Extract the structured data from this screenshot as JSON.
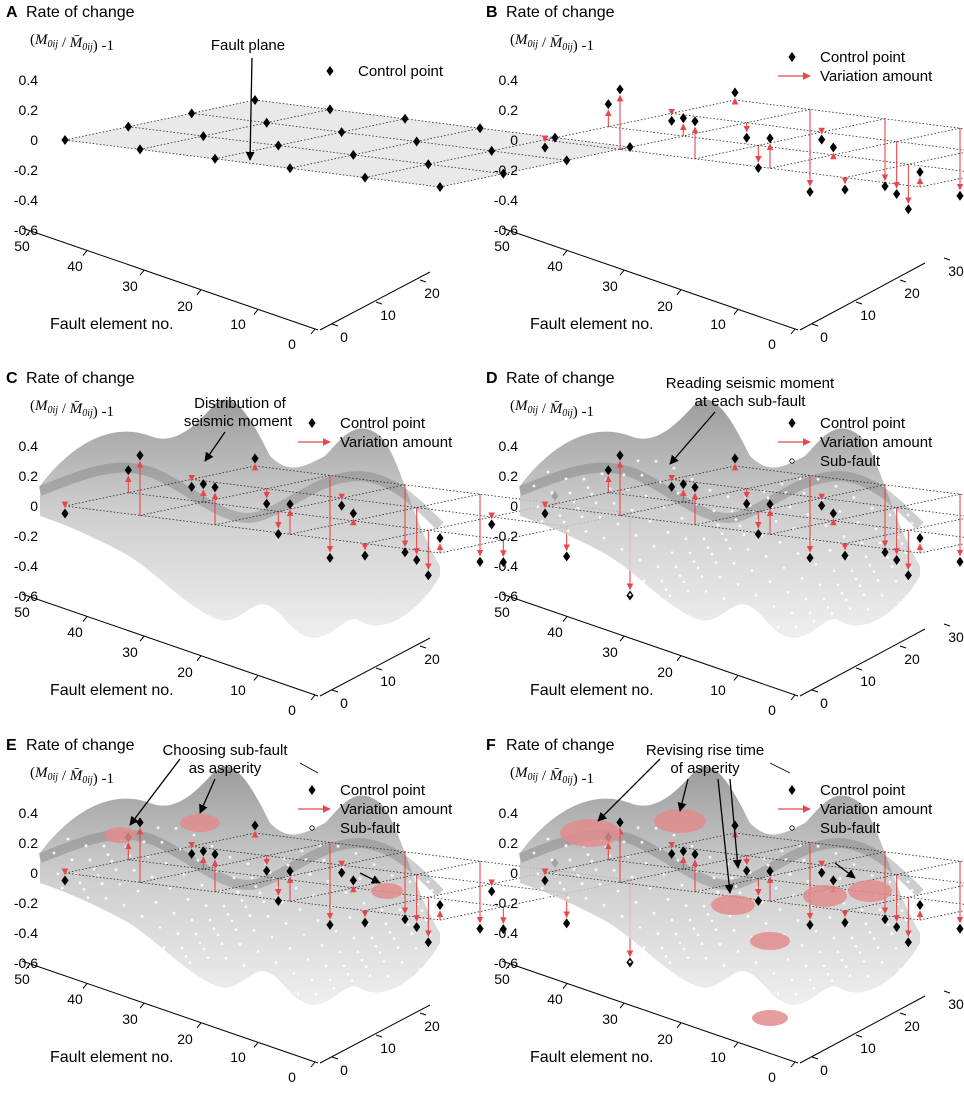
{
  "colors": {
    "variation": "#e8474a",
    "grid": "#222222",
    "plane": "#e9e9e9",
    "asperity": "#e28c8c",
    "surface_dark": "#7a7a7a",
    "surface_light": "#dedede"
  },
  "chart_data": [
    {
      "type": "surface3d",
      "panel_label": "A",
      "ylabel_line1": "Rate of change",
      "ylabel_formula": "(M0ij / M̄0ij) -1",
      "formula": {
        "open": "(",
        "M": "M",
        "sub": "0ij",
        "slash": " / ",
        "Mbar": "M̄",
        "close": ") -1"
      },
      "ytick_labels": [
        "0.4",
        "0.2",
        "0",
        "-0.2",
        "-0.4",
        "-0.6"
      ],
      "yticks": [
        0.4,
        0.2,
        0,
        -0.2,
        -0.4,
        -0.6
      ],
      "ylim": [
        -0.6,
        0.4
      ],
      "x_tick_labels": [
        "50",
        "40",
        "30",
        "20",
        "10",
        "0"
      ],
      "x_ticks": [
        50,
        40,
        30,
        20,
        10,
        0
      ],
      "xlabel": "Fault element no.",
      "z_tick_labels": [
        "0",
        "10",
        "20"
      ],
      "z_ticks": [
        0,
        10,
        20
      ],
      "legend": [
        {
          "name": "Control point",
          "marker": "diamond"
        }
      ],
      "annotations": [
        {
          "text": "Fault plane"
        }
      ],
      "control_points": [
        {
          "x": 0,
          "y": 0,
          "value": 0
        },
        {
          "x": 1,
          "y": 0,
          "value": 0
        },
        {
          "x": 2,
          "y": 0,
          "value": 0
        },
        {
          "x": 3,
          "y": 0,
          "value": 0
        },
        {
          "x": 4,
          "y": 0,
          "value": 0
        },
        {
          "x": 5,
          "y": 0,
          "value": 0
        },
        {
          "x": 0,
          "y": 1,
          "value": 0
        },
        {
          "x": 1,
          "y": 1,
          "value": 0
        },
        {
          "x": 2,
          "y": 1,
          "value": 0
        },
        {
          "x": 3,
          "y": 1,
          "value": 0
        },
        {
          "x": 4,
          "y": 1,
          "value": 0
        },
        {
          "x": 5,
          "y": 1,
          "value": 0
        },
        {
          "x": 0,
          "y": 2,
          "value": 0
        },
        {
          "x": 1,
          "y": 2,
          "value": 0
        },
        {
          "x": 2,
          "y": 2,
          "value": 0
        },
        {
          "x": 3,
          "y": 2,
          "value": 0
        },
        {
          "x": 4,
          "y": 2,
          "value": 0
        },
        {
          "x": 5,
          "y": 2,
          "value": 0
        },
        {
          "x": 0,
          "y": 3,
          "value": 0
        },
        {
          "x": 1,
          "y": 3,
          "value": 0
        },
        {
          "x": 2,
          "y": 3,
          "value": 0
        },
        {
          "x": 3,
          "y": 3,
          "value": 0
        },
        {
          "x": 4,
          "y": 3,
          "value": 0
        },
        {
          "x": 5,
          "y": 3,
          "value": 0
        }
      ]
    },
    {
      "type": "surface3d",
      "panel_label": "B",
      "ylabel_line1": "Rate of change",
      "formula": {
        "open": "(",
        "M": "M",
        "sub": "0ij",
        "slash": " / ",
        "Mbar": "M̄",
        "close": ") -1"
      },
      "ytick_labels": [
        "0.4",
        "0.2",
        "0",
        "-0.2",
        "-0.4",
        "-0.6"
      ],
      "yticks": [
        0.4,
        0.2,
        0,
        -0.2,
        -0.4,
        -0.6
      ],
      "ylim": [
        -0.6,
        0.4
      ],
      "x_tick_labels": [
        "50",
        "40",
        "30",
        "20",
        "10",
        "0"
      ],
      "x_ticks": [
        50,
        40,
        30,
        20,
        10,
        0
      ],
      "xlabel": "Fault element no.",
      "z_tick_labels": [
        "0",
        "10",
        "20",
        "30"
      ],
      "z_ticks": [
        0,
        10,
        20,
        30
      ],
      "legend": [
        {
          "name": "Control point",
          "marker": "diamond"
        },
        {
          "name": "Variation amount",
          "marker": "arrow"
        }
      ],
      "control_points": [
        {
          "x": 0,
          "y": 0,
          "value": -0.05
        },
        {
          "x": 1,
          "y": 0,
          "value": 0.4
        },
        {
          "x": 2,
          "y": 0,
          "value": 0.25
        },
        {
          "x": 3,
          "y": 0,
          "value": 0.2
        },
        {
          "x": 4,
          "y": 0,
          "value": -0.08
        },
        {
          "x": 5,
          "y": 0,
          "value": 0.1
        },
        {
          "x": 0,
          "y": 1,
          "value": 0.15
        },
        {
          "x": 1,
          "y": 1,
          "value": 0.12
        },
        {
          "x": 2,
          "y": 1,
          "value": -0.15
        },
        {
          "x": 3,
          "y": 1,
          "value": 0.05
        },
        {
          "x": 4,
          "y": 1,
          "value": -0.3
        },
        {
          "x": 5,
          "y": 1,
          "value": -0.15
        },
        {
          "x": 0,
          "y": 2,
          "value": -0.05
        },
        {
          "x": 1,
          "y": 2,
          "value": -0.1
        },
        {
          "x": 2,
          "y": 2,
          "value": -0.05
        },
        {
          "x": 3,
          "y": 2,
          "value": -0.35
        },
        {
          "x": 4,
          "y": 2,
          "value": -0.05
        },
        {
          "x": 5,
          "y": 2,
          "value": -0.2
        },
        {
          "x": 0,
          "y": 3,
          "value": 0.05
        },
        {
          "x": 1,
          "y": 3,
          "value": -0.55
        },
        {
          "x": 2,
          "y": 3,
          "value": -0.45
        },
        {
          "x": 3,
          "y": 3,
          "value": -0.45
        },
        {
          "x": 4,
          "y": 3,
          "value": 0.05
        },
        {
          "x": 5,
          "y": 3,
          "value": -0.55
        }
      ]
    },
    {
      "type": "surface3d",
      "panel_label": "C",
      "ylabel_line1": "Rate of change",
      "formula": {
        "open": "(",
        "M": "M",
        "sub": "0ij",
        "slash": " / ",
        "Mbar": "M̄",
        "close": ") -1"
      },
      "ytick_labels": [
        "0.4",
        "0.2",
        "0",
        "-0.2",
        "-0.4",
        "-0.6"
      ],
      "yticks": [
        0.4,
        0.2,
        0,
        -0.2,
        -0.4,
        -0.6
      ],
      "ylim": [
        -0.6,
        0.4
      ],
      "x_tick_labels": [
        "50",
        "40",
        "30",
        "20",
        "10",
        "0"
      ],
      "x_ticks": [
        50,
        40,
        30,
        20,
        10,
        0
      ],
      "xlabel": "Fault element no.",
      "z_tick_labels": [
        "0",
        "10",
        "20"
      ],
      "z_ticks": [
        0,
        10,
        20
      ],
      "legend": [
        {
          "name": "Control point",
          "marker": "diamond"
        },
        {
          "name": "Variation amount",
          "marker": "arrow"
        }
      ],
      "annotations": [
        {
          "text": "Distribution of"
        },
        {
          "text": "seismic moment"
        }
      ]
    },
    {
      "type": "surface3d",
      "panel_label": "D",
      "ylabel_line1": "Rate of change",
      "formula": {
        "open": "(",
        "M": "M",
        "sub": "0ij",
        "slash": " / ",
        "Mbar": "M̄",
        "close": ") -1"
      },
      "ytick_labels": [
        "0.4",
        "0.2",
        "0",
        "-0.2",
        "-0.4",
        "-0.6"
      ],
      "yticks": [
        0.4,
        0.2,
        0,
        -0.2,
        -0.4,
        -0.6
      ],
      "ylim": [
        -0.6,
        0.4
      ],
      "x_tick_labels": [
        "50",
        "40",
        "30",
        "20",
        "10",
        "0"
      ],
      "x_ticks": [
        50,
        40,
        30,
        20,
        10,
        0
      ],
      "xlabel": "Fault element no.",
      "z_tick_labels": [
        "0",
        "10",
        "20",
        "30"
      ],
      "z_ticks": [
        0,
        10,
        20,
        30
      ],
      "legend": [
        {
          "name": "Control point",
          "marker": "diamond"
        },
        {
          "name": "Variation amount",
          "marker": "arrow"
        },
        {
          "name": "Sub-fault",
          "marker": "circle"
        }
      ],
      "annotations": [
        {
          "text": "Reading seismic moment"
        },
        {
          "text": "at each sub-fault"
        }
      ]
    },
    {
      "type": "surface3d",
      "panel_label": "E",
      "ylabel_line1": "Rate of change",
      "formula": {
        "open": "(",
        "M": "M",
        "sub": "0ij",
        "slash": " / ",
        "Mbar": "M̄",
        "close": ") -1"
      },
      "ytick_labels": [
        "0.4",
        "0.2",
        "0",
        "-0.2",
        "-0.4",
        "-0.6"
      ],
      "yticks": [
        0.4,
        0.2,
        0,
        -0.2,
        -0.4,
        -0.6
      ],
      "ylim": [
        -0.6,
        0.4
      ],
      "x_tick_labels": [
        "50",
        "40",
        "30",
        "20",
        "10",
        "0"
      ],
      "x_ticks": [
        50,
        40,
        30,
        20,
        10,
        0
      ],
      "xlabel": "Fault element no.",
      "z_tick_labels": [
        "0",
        "10",
        "20"
      ],
      "z_ticks": [
        0,
        10,
        20
      ],
      "legend": [
        {
          "name": "Control point",
          "marker": "diamond"
        },
        {
          "name": "Variation amount",
          "marker": "arrow"
        },
        {
          "name": "Sub-fault",
          "marker": "circle"
        }
      ],
      "annotations": [
        {
          "text": "Choosing sub-fault"
        },
        {
          "text": "as asperity"
        }
      ]
    },
    {
      "type": "surface3d",
      "panel_label": "F",
      "ylabel_line1": "Rate of change",
      "formula": {
        "open": "(",
        "M": "M",
        "sub": "0ij",
        "slash": " / ",
        "Mbar": "M̄",
        "close": ") -1"
      },
      "ytick_labels": [
        "0.4",
        "0.2",
        "0",
        "-0.2",
        "-0.4",
        "-0.6"
      ],
      "yticks": [
        0.4,
        0.2,
        0,
        -0.2,
        -0.4,
        -0.6
      ],
      "ylim": [
        -0.6,
        0.4
      ],
      "x_tick_labels": [
        "50",
        "40",
        "30",
        "20",
        "10",
        "0"
      ],
      "x_ticks": [
        50,
        40,
        30,
        20,
        10,
        0
      ],
      "xlabel": "Fault element no.",
      "z_tick_labels": [
        "0",
        "10",
        "20",
        "30"
      ],
      "z_ticks": [
        0,
        10,
        20,
        30
      ],
      "legend": [
        {
          "name": "Control point",
          "marker": "diamond"
        },
        {
          "name": "Variation amount",
          "marker": "arrow"
        },
        {
          "name": "Sub-fault",
          "marker": "circle"
        }
      ],
      "annotations": [
        {
          "text": "Revising rise time"
        },
        {
          "text": "of asperity"
        }
      ]
    }
  ]
}
